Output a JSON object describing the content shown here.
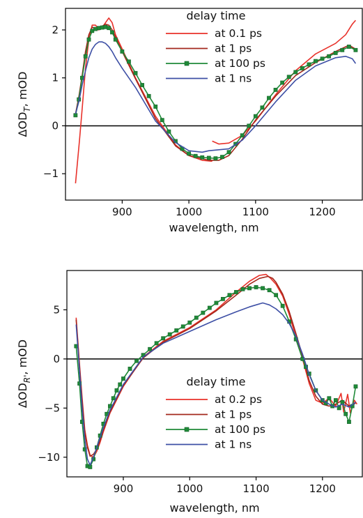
{
  "chart_data": [
    {
      "type": "line",
      "xlabel": "wavelength, nm",
      "ylabel_main": "ΔOD",
      "ylabel_sub": "T",
      "ylabel_unit": ", mOD",
      "xlim": [
        815,
        1260
      ],
      "ylim": [
        -1.55,
        2.45
      ],
      "xticks": [
        900,
        1000,
        1100,
        1200
      ],
      "yticks": [
        -1,
        0,
        1,
        2
      ],
      "ytick_labels": [
        "−1",
        "0",
        "1",
        "2"
      ],
      "grid": false,
      "zero_line": true,
      "legend": {
        "title": "delay time",
        "placement": "top-right"
      },
      "series": [
        {
          "name": "at 0.1 ps",
          "color": "#e8312a",
          "marker": "none",
          "x": [
            830,
            836,
            840,
            845,
            850,
            855,
            860,
            865,
            870,
            875,
            880,
            885,
            890,
            900,
            920,
            950,
            980,
            1000,
            1020,
            1035
          ],
          "y": [
            -1.2,
            -0.3,
            0.35,
            1.2,
            1.8,
            2.1,
            2.1,
            2.02,
            2.05,
            2.15,
            2.25,
            2.15,
            1.9,
            1.6,
            1.0,
            0.2,
            -0.4,
            -0.62,
            -0.72,
            -0.74
          ],
          "x2": [
            1035,
            1045,
            1060,
            1080,
            1100,
            1130,
            1160,
            1190,
            1220,
            1235,
            1245,
            1250
          ],
          "y2": [
            -0.32,
            -0.38,
            -0.36,
            -0.2,
            0.1,
            0.65,
            1.15,
            1.5,
            1.72,
            1.9,
            2.12,
            2.2
          ]
        },
        {
          "name": "at 1 ps",
          "color": "#a3281c",
          "marker": "none",
          "x": [
            830,
            835,
            840,
            845,
            850,
            855,
            860,
            865,
            870,
            875,
            880,
            885,
            890,
            900,
            920,
            950,
            980,
            1000,
            1030,
            1045,
            1060,
            1080,
            1100,
            1130,
            1160,
            1190,
            1220,
            1240,
            1250
          ],
          "y": [
            0.25,
            0.6,
            1.05,
            1.55,
            1.9,
            2.06,
            2.02,
            2.0,
            2.08,
            2.12,
            2.1,
            2.0,
            1.85,
            1.55,
            0.98,
            0.15,
            -0.42,
            -0.62,
            -0.72,
            -0.72,
            -0.62,
            -0.28,
            0.12,
            0.62,
            1.05,
            1.32,
            1.55,
            1.68,
            1.6
          ]
        },
        {
          "name": "at 100 ps",
          "color": "#1f8a38",
          "marker": "square",
          "x": [
            830,
            835,
            840,
            845,
            850,
            855,
            860,
            865,
            870,
            875,
            880,
            885,
            890,
            900,
            910,
            920,
            930,
            940,
            950,
            960,
            970,
            980,
            990,
            1000,
            1010,
            1020,
            1030,
            1040,
            1050,
            1060,
            1070,
            1080,
            1090,
            1100,
            1110,
            1120,
            1130,
            1140,
            1150,
            1160,
            1170,
            1180,
            1190,
            1200,
            1210,
            1220,
            1230,
            1240,
            1250
          ],
          "y": [
            0.22,
            0.55,
            1.0,
            1.45,
            1.8,
            1.98,
            2.02,
            2.04,
            2.05,
            2.06,
            2.04,
            1.95,
            1.8,
            1.55,
            1.34,
            1.1,
            0.85,
            0.62,
            0.4,
            0.12,
            -0.12,
            -0.32,
            -0.48,
            -0.58,
            -0.63,
            -0.66,
            -0.67,
            -0.68,
            -0.65,
            -0.55,
            -0.38,
            -0.2,
            0.0,
            0.2,
            0.38,
            0.58,
            0.75,
            0.9,
            1.02,
            1.12,
            1.2,
            1.28,
            1.35,
            1.4,
            1.45,
            1.52,
            1.58,
            1.65,
            1.58
          ]
        },
        {
          "name": "at 1 ns",
          "color": "#3d4fa5",
          "marker": "none",
          "x": [
            830,
            835,
            840,
            845,
            850,
            855,
            860,
            865,
            870,
            875,
            880,
            885,
            890,
            900,
            920,
            950,
            980,
            1000,
            1020,
            1030,
            1045,
            1060,
            1080,
            1100,
            1130,
            1160,
            1190,
            1220,
            1235,
            1245,
            1250
          ],
          "y": [
            0.25,
            0.5,
            0.85,
            1.15,
            1.42,
            1.6,
            1.7,
            1.75,
            1.75,
            1.72,
            1.65,
            1.55,
            1.42,
            1.2,
            0.8,
            0.1,
            -0.35,
            -0.52,
            -0.55,
            -0.52,
            -0.5,
            -0.48,
            -0.3,
            0.0,
            0.5,
            0.95,
            1.25,
            1.42,
            1.45,
            1.4,
            1.3
          ]
        }
      ]
    },
    {
      "type": "line",
      "xlabel": "wavelength, nm",
      "ylabel_main": "ΔOD",
      "ylabel_sub": "R'",
      "ylabel_unit": ", mOD",
      "xlim": [
        815,
        1260
      ],
      "ylim": [
        -12.0,
        9.0
      ],
      "xticks": [
        900,
        1000,
        1100,
        1200
      ],
      "yticks": [
        -10,
        -5,
        0,
        5
      ],
      "ytick_labels": [
        "−10",
        "−5",
        "0",
        "5"
      ],
      "grid": false,
      "zero_line": true,
      "legend": {
        "title": "delay time",
        "placement": "lower-center"
      },
      "series": [
        {
          "name": "at 0.2 ps",
          "color": "#e8312a",
          "marker": "none",
          "x": [
            829,
            834,
            838,
            842,
            846,
            850,
            855,
            860,
            865,
            870,
            880,
            900,
            930,
            960,
            1000,
            1040,
            1070,
            1090,
            1105,
            1115,
            1122,
            1130,
            1140,
            1150,
            1160,
            1170,
            1180,
            1190,
            1200,
            1210,
            1220,
            1228,
            1232,
            1238,
            1242,
            1248,
            1252
          ],
          "y": [
            4.2,
            -0.5,
            -4.0,
            -7.2,
            -8.8,
            -9.8,
            -10.0,
            -9.4,
            -8.5,
            -7.4,
            -5.5,
            -2.8,
            0.2,
            1.8,
            3.2,
            5.0,
            6.8,
            7.9,
            8.5,
            8.6,
            8.2,
            7.6,
            6.4,
            4.5,
            2.2,
            0.0,
            -2.5,
            -4.2,
            -4.5,
            -4.0,
            -4.8,
            -3.5,
            -5.4,
            -3.6,
            -5.5,
            -4.2,
            -4.6
          ]
        },
        {
          "name": "at 1 ps",
          "color": "#a3281c",
          "marker": "none",
          "x": [
            829,
            834,
            838,
            842,
            846,
            850,
            855,
            860,
            865,
            870,
            880,
            900,
            930,
            960,
            1000,
            1040,
            1070,
            1090,
            1105,
            1118,
            1125,
            1130,
            1140,
            1150,
            1160,
            1170,
            1180,
            1190,
            1200,
            1210,
            1220,
            1230,
            1240,
            1250
          ],
          "y": [
            4.0,
            -0.8,
            -4.3,
            -7.5,
            -9.0,
            -9.9,
            -9.7,
            -9.2,
            -8.3,
            -7.2,
            -5.4,
            -2.7,
            0.1,
            1.7,
            3.1,
            4.9,
            6.5,
            7.6,
            8.2,
            8.4,
            8.2,
            7.8,
            6.6,
            4.8,
            2.6,
            0.3,
            -2.2,
            -3.8,
            -4.6,
            -4.8,
            -4.6,
            -4.2,
            -4.8,
            -4.5
          ]
        },
        {
          "name": "at 100 ps",
          "color": "#1f8a38",
          "marker": "square",
          "x": [
            829,
            834,
            838,
            842,
            846,
            850,
            855,
            860,
            865,
            870,
            875,
            880,
            885,
            890,
            895,
            900,
            910,
            920,
            930,
            940,
            950,
            960,
            970,
            980,
            990,
            1000,
            1010,
            1020,
            1030,
            1040,
            1050,
            1060,
            1070,
            1080,
            1090,
            1100,
            1110,
            1120,
            1130,
            1140,
            1150,
            1160,
            1170,
            1175,
            1180,
            1190,
            1200,
            1205,
            1210,
            1215,
            1220,
            1225,
            1230,
            1235,
            1240,
            1245,
            1250
          ],
          "y": [
            1.3,
            -2.5,
            -6.4,
            -9.2,
            -10.9,
            -11.0,
            -10.2,
            -9.0,
            -7.8,
            -6.6,
            -5.6,
            -4.8,
            -4.0,
            -3.2,
            -2.6,
            -2.0,
            -1.0,
            -0.2,
            0.4,
            1.0,
            1.6,
            2.1,
            2.5,
            2.9,
            3.3,
            3.7,
            4.2,
            4.7,
            5.2,
            5.7,
            6.1,
            6.5,
            6.8,
            7.1,
            7.2,
            7.3,
            7.2,
            7.0,
            6.5,
            5.4,
            3.8,
            2.0,
            0.0,
            -0.8,
            -1.5,
            -3.2,
            -4.2,
            -4.5,
            -4.0,
            -4.8,
            -4.2,
            -5.0,
            -4.4,
            -5.6,
            -6.4,
            -4.8,
            -2.8
          ]
        },
        {
          "name": "at 1 ns",
          "color": "#3d4fa5",
          "marker": "none",
          "x": [
            829,
            834,
            838,
            842,
            846,
            850,
            855,
            860,
            865,
            870,
            880,
            900,
            930,
            960,
            1000,
            1040,
            1070,
            1090,
            1100,
            1110,
            1120,
            1130,
            1140,
            1150,
            1160,
            1170,
            1180,
            1190,
            1200,
            1210,
            1220,
            1230,
            1240,
            1250
          ],
          "y": [
            3.5,
            -1.2,
            -5.0,
            -8.2,
            -10.2,
            -10.8,
            -10.0,
            -9.0,
            -8.0,
            -7.0,
            -5.2,
            -2.6,
            0.2,
            1.6,
            2.8,
            4.0,
            4.8,
            5.3,
            5.5,
            5.7,
            5.5,
            5.1,
            4.5,
            3.6,
            2.3,
            0.5,
            -1.6,
            -3.2,
            -4.2,
            -4.6,
            -4.9,
            -4.6,
            -4.9,
            -4.4
          ]
        }
      ]
    }
  ]
}
